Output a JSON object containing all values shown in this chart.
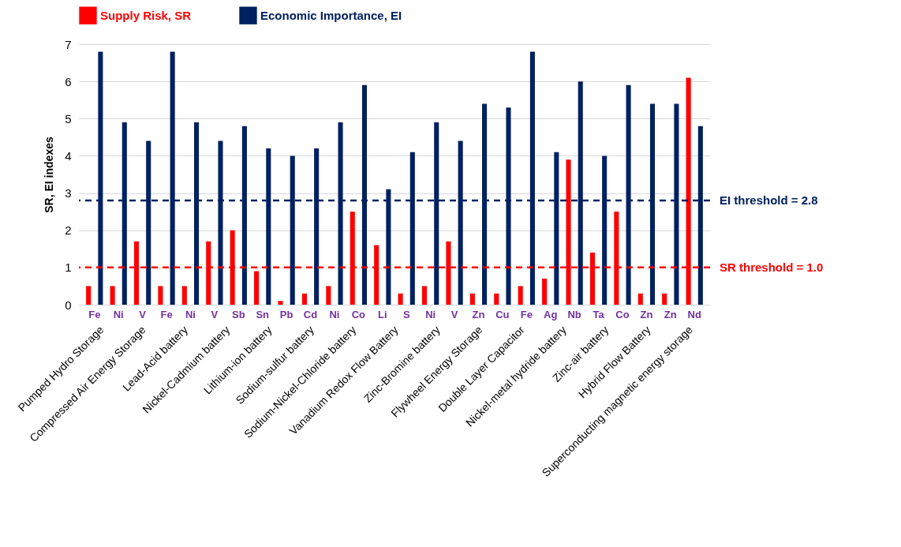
{
  "chart_data": {
    "type": "bar",
    "categories": [
      "Fe",
      "Ni",
      "V",
      "Fe",
      "Ni",
      "V",
      "Sb",
      "Sn",
      "Pb",
      "Cd",
      "Ni",
      "Co",
      "Li",
      "S",
      "Ni",
      "V",
      "Zn",
      "Cu",
      "Fe",
      "Ag",
      "Nb",
      "Ta",
      "Co",
      "Zn",
      "Zn",
      "Nd"
    ],
    "series": [
      {
        "name": "Supply Risk, SR",
        "color": "#ff0000",
        "values": [
          0.5,
          0.5,
          1.7,
          0.5,
          0.5,
          1.7,
          2.0,
          0.9,
          0.1,
          0.3,
          0.5,
          2.5,
          1.6,
          0.3,
          0.5,
          1.7,
          0.3,
          0.3,
          0.5,
          0.7,
          3.9,
          1.4,
          2.5,
          0.3,
          0.3,
          6.1
        ]
      },
      {
        "name": "Economic Importance, EI",
        "color": "#002060",
        "values": [
          6.8,
          4.9,
          4.4,
          6.8,
          4.9,
          4.4,
          4.8,
          4.2,
          4.0,
          4.2,
          4.9,
          5.9,
          3.1,
          4.1,
          4.9,
          4.4,
          5.4,
          5.3,
          6.8,
          4.1,
          6.0,
          4.0,
          5.9,
          5.4,
          5.4,
          4.8
        ]
      }
    ],
    "ylabel": "SR, EI indexes",
    "ylim": [
      0,
      7
    ],
    "yticks": [
      {
        "value": 0,
        "label": "0"
      },
      {
        "value": 1,
        "label": "1"
      },
      {
        "value": 2,
        "label": "2"
      },
      {
        "value": 3,
        "label": "3"
      },
      {
        "value": 4,
        "label": "4"
      },
      {
        "value": 5,
        "label": "5"
      },
      {
        "value": 6,
        "label": "6"
      },
      {
        "value": 7,
        "label": "7"
      }
    ],
    "grid": "y",
    "legend": "top",
    "ref_lines": [
      {
        "axis": "y",
        "value": 2.8,
        "label": "EI threshold = 2.8",
        "color": "#002060",
        "line_style": "dashed"
      },
      {
        "axis": "y",
        "value": 1.0,
        "label": "SR threshold = 1.0",
        "color": "#ff0000",
        "line_style": "dashed"
      }
    ],
    "annotations": [
      "Pumped Hydro Storage",
      "Compressed Air Energy Storage",
      "Lead-Acid battery",
      "Nickel-Cadmium battery",
      "Lithium-ion battery",
      "Sodium-sulfur battery",
      "Sodium-Nickel-Chloride battery",
      "Vanadium Redox Flow Battery",
      "Zinc-Bromine battery",
      "Flywheel Energy Storage",
      "Double Layer Capacitor",
      "Nickel-metal hydride battery",
      "Zinc-air battery",
      "Hybrid Flow Battery",
      "Superconducting magnetic energy storage"
    ]
  }
}
